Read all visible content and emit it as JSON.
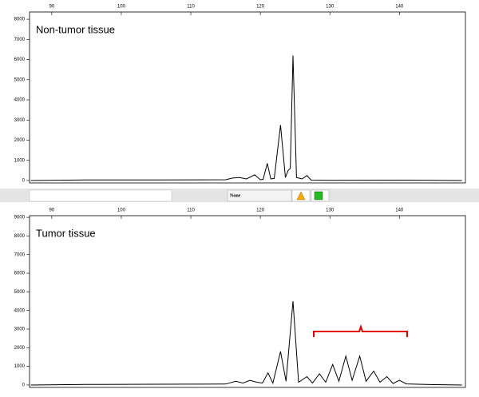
{
  "chart_data": [
    {
      "type": "line",
      "annotation": "Non-tumor tissue",
      "color": "#000000",
      "x": [
        87,
        95,
        105,
        115,
        116,
        117,
        118,
        119.2,
        120,
        120.4,
        121.0,
        121.5,
        122,
        122.9,
        123.6,
        124.0,
        124.3,
        124.7,
        125.2,
        126,
        126.7,
        127.3,
        130,
        140,
        149
      ],
      "values": [
        0,
        30,
        30,
        40,
        120,
        150,
        80,
        280,
        40,
        60,
        850,
        80,
        100,
        2750,
        150,
        500,
        600,
        6200,
        150,
        80,
        250,
        20,
        10,
        20,
        0
      ],
      "xlim": [
        86.8,
        149.5
      ],
      "xticks": [
        90,
        100,
        110,
        120,
        130,
        140
      ],
      "ylim": [
        -120,
        8360
      ],
      "yticks": [
        0,
        1000,
        2000,
        3000,
        4000,
        5000,
        6000,
        7000,
        8000
      ]
    },
    {
      "type": "line",
      "annotation": "Tumor tissue",
      "color": "#000000",
      "x": [
        87,
        95,
        105,
        115,
        116.5,
        117.5,
        118.5,
        119.5,
        120.3,
        121.1,
        121.8,
        122.9,
        123.7,
        124.7,
        125.5,
        126.7,
        127.5,
        128.5,
        129.4,
        130.4,
        131.3,
        132.3,
        133.2,
        134.3,
        135.2,
        136.3,
        137.2,
        138.2,
        139.1,
        140.0,
        141,
        145,
        149
      ],
      "values": [
        0,
        30,
        40,
        50,
        200,
        100,
        250,
        150,
        100,
        650,
        100,
        1800,
        200,
        4500,
        150,
        450,
        100,
        600,
        150,
        1100,
        200,
        1550,
        250,
        1550,
        200,
        750,
        150,
        450,
        80,
        250,
        60,
        20,
        0
      ],
      "xlim": [
        86.8,
        149.5
      ],
      "xticks": [
        90,
        100,
        110,
        120,
        130,
        140
      ],
      "ylim": [
        -130,
        9090
      ],
      "yticks": [
        0,
        1000,
        2000,
        3000,
        4000,
        5000,
        6000,
        7000,
        8000,
        9000
      ]
    }
  ],
  "toolbar": {
    "label": "None"
  }
}
